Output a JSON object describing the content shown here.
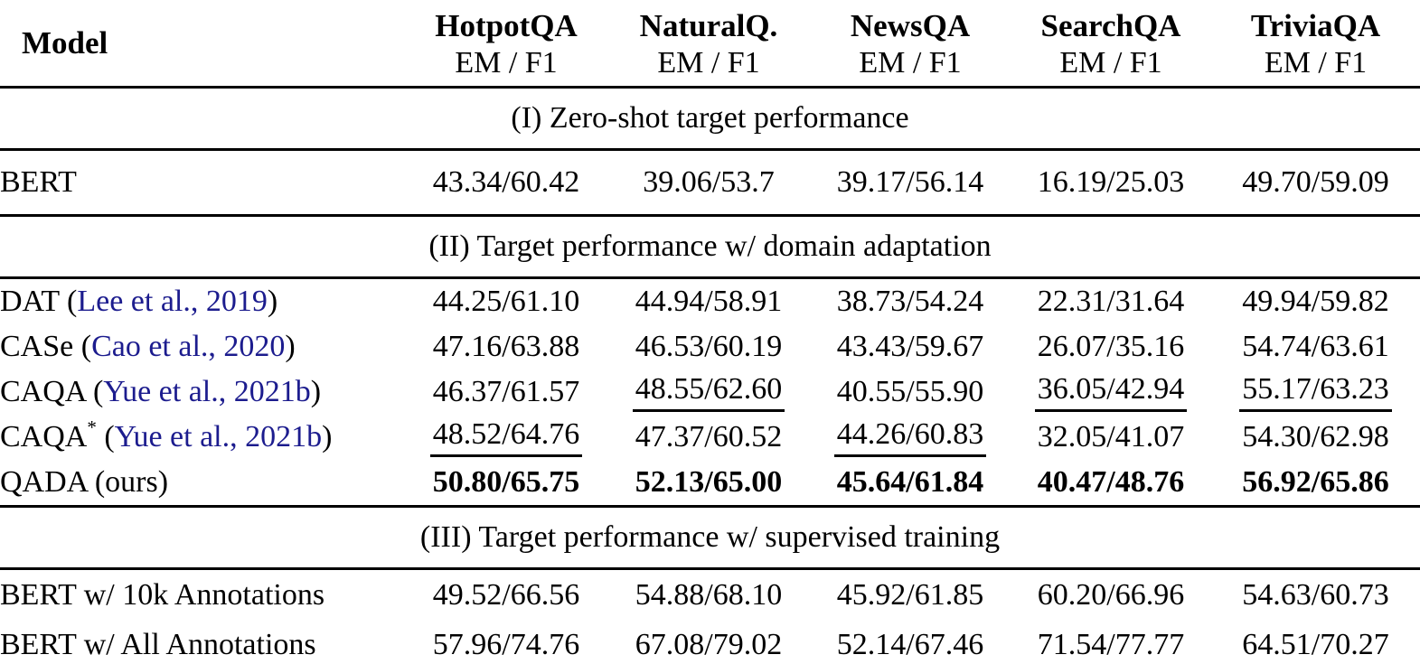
{
  "table": {
    "model_header": "Model",
    "metric_label": "EM / F1",
    "datasets": [
      "HotpotQA",
      "NaturalQ.",
      "NewsQA",
      "SearchQA",
      "TriviaQA"
    ],
    "punctuation": {
      "cite_open": "(",
      "cite_close": ")",
      "star": "*"
    },
    "sections": [
      {
        "label": "(I) Zero-shot target performance",
        "rows": [
          {
            "name": "BERT",
            "values": [
              "43.34/60.42",
              "39.06/53.7",
              "39.17/56.14",
              "16.19/25.03",
              "49.70/59.09"
            ],
            "bold": false,
            "underline": [
              0,
              0,
              0,
              0,
              0
            ]
          }
        ]
      },
      {
        "label": "(II) Target performance w/ domain adaptation",
        "rows": [
          {
            "name": "DAT",
            "cite": "Lee et al., 2019",
            "values": [
              "44.25/61.10",
              "44.94/58.91",
              "38.73/54.24",
              "22.31/31.64",
              "49.94/59.82"
            ],
            "bold": false,
            "underline": [
              0,
              0,
              0,
              0,
              0
            ]
          },
          {
            "name": "CASe",
            "cite": "Cao et al., 2020",
            "values": [
              "47.16/63.88",
              "46.53/60.19",
              "43.43/59.67",
              "26.07/35.16",
              "54.74/63.61"
            ],
            "bold": false,
            "underline": [
              0,
              0,
              0,
              0,
              0
            ]
          },
          {
            "name": "CAQA",
            "cite": "Yue et al., 2021b",
            "values": [
              "46.37/61.57",
              "48.55/62.60",
              "40.55/55.90",
              "36.05/42.94",
              "55.17/63.23"
            ],
            "bold": false,
            "underline": [
              0,
              1,
              0,
              1,
              1
            ]
          },
          {
            "name": "CAQA",
            "sup": "*",
            "cite": "Yue et al., 2021b",
            "values": [
              "48.52/64.76",
              "47.37/60.52",
              "44.26/60.83",
              "32.05/41.07",
              "54.30/62.98"
            ],
            "bold": false,
            "underline": [
              1,
              0,
              1,
              0,
              0
            ]
          },
          {
            "name": "QADA (ours)",
            "values": [
              "50.80/65.75",
              "52.13/65.00",
              "45.64/61.84",
              "40.47/48.76",
              "56.92/65.86"
            ],
            "bold": true,
            "underline": [
              0,
              0,
              0,
              0,
              0
            ]
          }
        ]
      },
      {
        "label": "(III) Target performance w/ supervised training",
        "rows": [
          {
            "name": "BERT w/ 10k Annotations",
            "values": [
              "49.52/66.56",
              "54.88/68.10",
              "45.92/61.85",
              "60.20/66.96",
              "54.63/60.73"
            ],
            "bold": false,
            "underline": [
              0,
              0,
              0,
              0,
              0
            ]
          },
          {
            "name": "BERT w/ All Annotations",
            "values": [
              "57.96/74.76",
              "67.08/79.02",
              "52.14/67.46",
              "71.54/77.77",
              "64.51/70.27"
            ],
            "bold": false,
            "underline": [
              0,
              0,
              0,
              0,
              0
            ]
          }
        ]
      }
    ]
  },
  "colors": {
    "citation_link": "#1c1c8e",
    "text": "#000000",
    "rule": "#000000"
  }
}
